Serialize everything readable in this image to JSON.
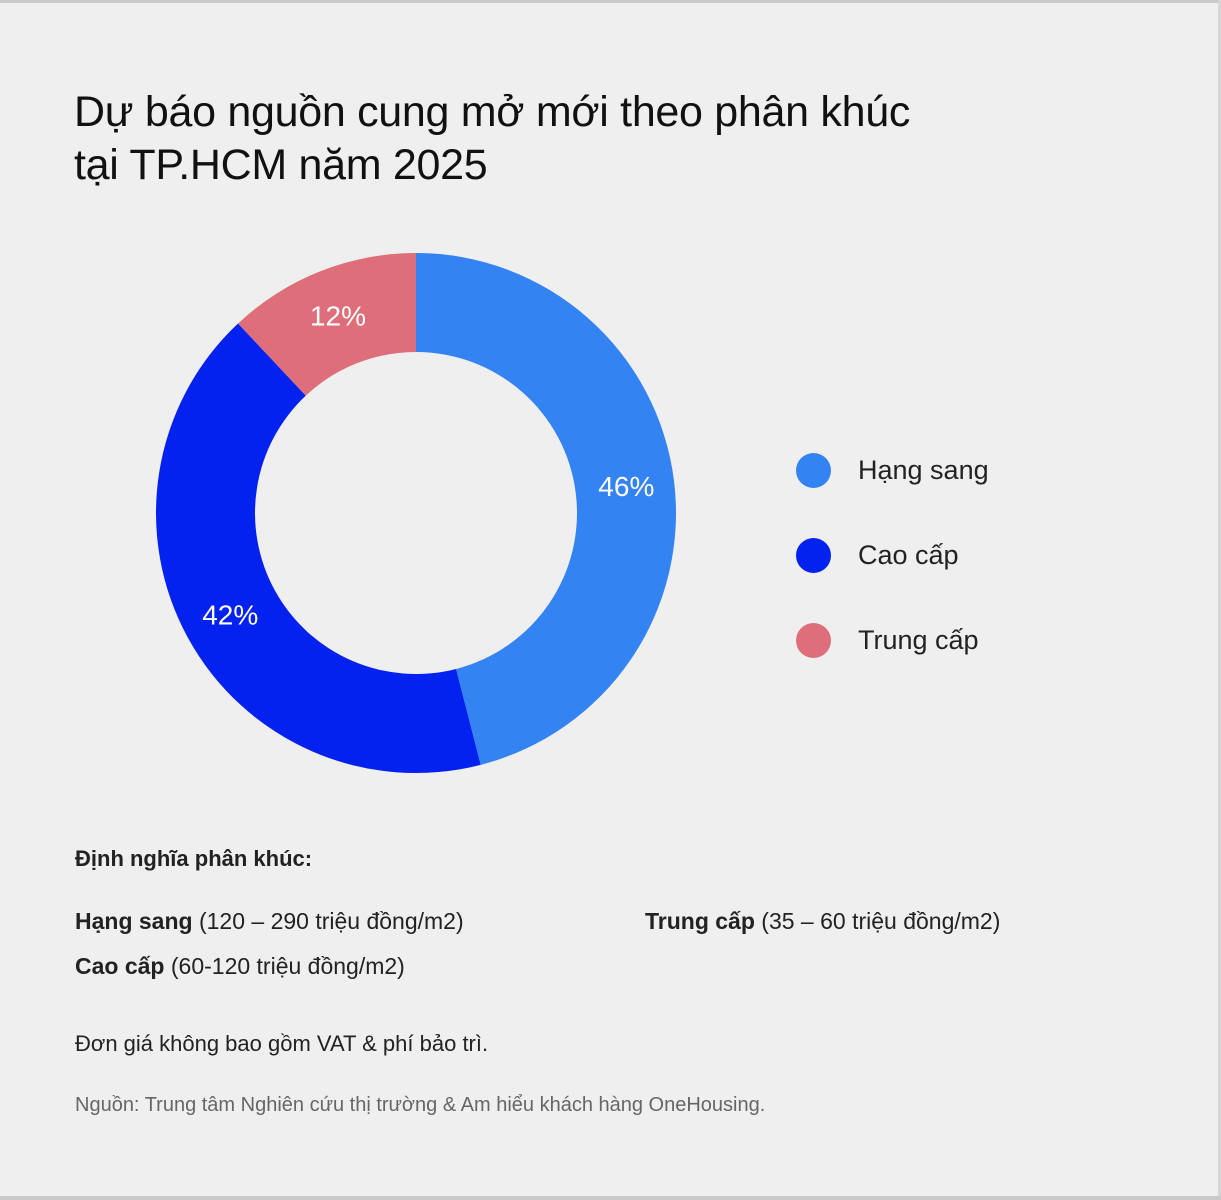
{
  "title": {
    "line1": "Dự báo nguồn cung mở mới theo phân khúc",
    "line2": "tại TP.HCM năm 2025"
  },
  "chart_data": {
    "type": "pie",
    "title": "Dự báo nguồn cung mở mới theo phân khúc tại TP.HCM năm 2025",
    "categories": [
      "Hạng sang",
      "Cao cấp",
      "Trung cấp"
    ],
    "values": [
      46,
      42,
      12
    ],
    "unit": "%",
    "data_labels": [
      "46%",
      "42%",
      "12%"
    ],
    "colors": [
      "#3483f2",
      "#0422ef",
      "#de6f7a"
    ],
    "legend_position": "right"
  },
  "legend": [
    {
      "label": "Hạng sang",
      "color": "#3483f2"
    },
    {
      "label": "Cao cấp",
      "color": "#0422ef"
    },
    {
      "label": "Trung cấp",
      "color": "#de6f7a"
    }
  ],
  "definitions": {
    "heading": "Định nghĩa phân khúc:",
    "items": [
      {
        "name": "Hạng sang",
        "range": " (120 – 290 triệu đồng/m2)"
      },
      {
        "name": "Trung cấp",
        "range": " (35 – 60 triệu đồng/m2)"
      },
      {
        "name": "Cao cấp",
        "range": " (60-120 triệu đồng/m2)"
      }
    ]
  },
  "note": "Đơn giá không bao gồm VAT & phí bảo trì.",
  "source": "Nguồn: Trung tâm Nghiên cứu thị trường & Am hiểu khách hàng OneHousing."
}
